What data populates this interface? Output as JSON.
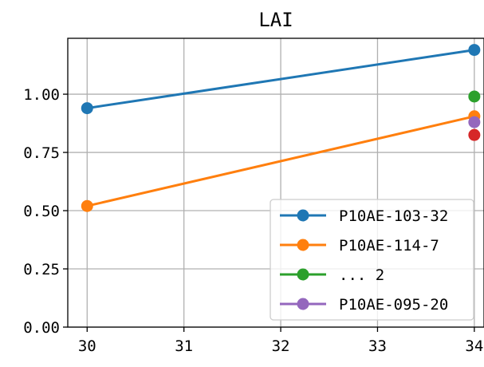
{
  "chart_data": {
    "type": "line",
    "title": "LAI",
    "xlabel": "",
    "ylabel": "",
    "xlim": [
      29.8,
      34.1
    ],
    "ylim": [
      0,
      1.24
    ],
    "grid": true,
    "legend_position": "lower-right",
    "x_ticks": [
      "30",
      "31",
      "32",
      "33",
      "34"
    ],
    "y_ticks": [
      "0.00",
      "0.25",
      "0.50",
      "0.75",
      "1.00"
    ],
    "series": [
      {
        "name": "P10AE-103-32",
        "color": "#1f77b4",
        "points": [
          [
            30,
            0.94
          ],
          [
            34,
            1.19
          ]
        ]
      },
      {
        "name": "P10AE-114-7",
        "color": "#ff7f0e",
        "points": [
          [
            30,
            0.52
          ],
          [
            34,
            0.905
          ]
        ]
      },
      {
        "name": "... 2",
        "color": "#2ca02c",
        "points": [
          [
            34,
            0.99
          ]
        ]
      },
      {
        "name": "",
        "color": "#d62728",
        "points": [
          [
            34,
            0.825
          ]
        ]
      },
      {
        "name": "P10AE-095-20",
        "color": "#9467bd",
        "points": [
          [
            34,
            0.88
          ]
        ]
      }
    ],
    "legend_order": [
      0,
      1,
      2,
      4
    ]
  }
}
